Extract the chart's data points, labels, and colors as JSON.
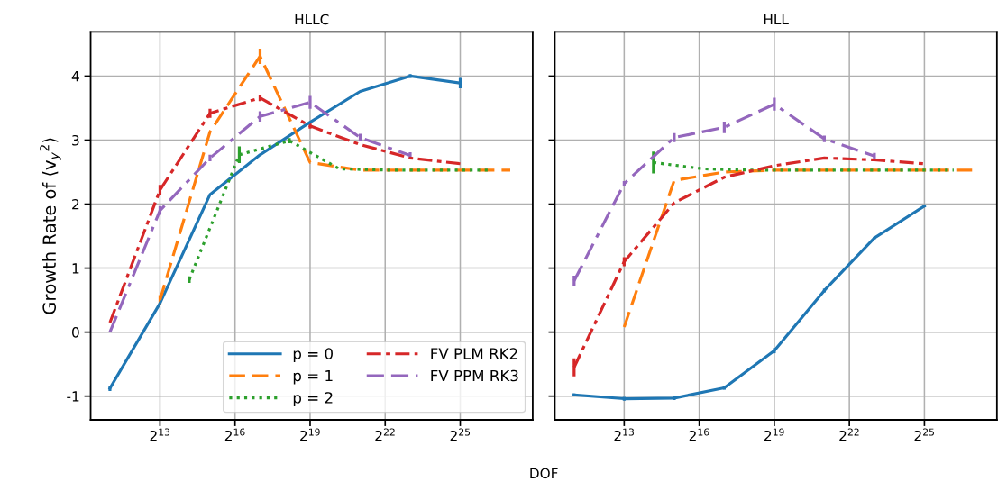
{
  "chart_data": [
    {
      "type": "line",
      "title": "HLLC",
      "xlabel": "DOF",
      "ylabel": "Growth Rate of ⟨v$_{y}$$^{2}$⟩",
      "log": "x",
      "grid": true,
      "legend": "bottom right",
      "xlim": [
        1200,
        250000000
      ],
      "ylim": [
        -1.37,
        4.69
      ],
      "xticks": [
        {
          "value": 8192,
          "label": "2$^{13}$"
        },
        {
          "value": 65536,
          "label": "2$^{16}$"
        },
        {
          "value": 524288,
          "label": "2$^{19}$"
        },
        {
          "value": 4194304,
          "label": "2$^{22}$"
        },
        {
          "value": 33554432,
          "label": "2$^{25}$"
        }
      ],
      "yticks": [
        -1,
        0,
        1,
        2,
        3,
        4
      ],
      "series": [
        {
          "name": "p = 0",
          "color": "#1f77b4",
          "line_style": "solid",
          "x": [
            2048,
            8192,
            32768,
            131072,
            524288,
            2097152,
            8388608,
            33554432
          ],
          "values": [
            -0.88,
            0.45,
            2.15,
            2.77,
            3.28,
            3.76,
            4.0,
            3.89
          ],
          "errors": [
            0.04,
            null,
            null,
            null,
            null,
            null,
            0.03,
            0.08
          ]
        },
        {
          "name": "p = 1",
          "color": "#ff7f0e",
          "line_style": "dashed",
          "x": [
            8192,
            32768,
            131072,
            524288,
            2097152,
            8388608,
            33554432,
            134217728
          ],
          "values": [
            0.5,
            3.13,
            4.31,
            2.65,
            2.53,
            2.53,
            2.53,
            2.53
          ],
          "errors": [
            0.08,
            null,
            0.12,
            null,
            null,
            null,
            null,
            null
          ]
        },
        {
          "name": "p = 2",
          "color": "#2ca02c",
          "line_style": "dotted",
          "x": [
            18432,
            73728,
            294912,
            1179648,
            4718592,
            18874368,
            75497472
          ],
          "values": [
            0.82,
            2.77,
            2.99,
            2.55,
            2.53,
            2.53,
            2.53
          ],
          "errors": [
            0.05,
            0.13,
            0.04,
            null,
            null,
            null,
            null
          ]
        },
        {
          "name": "FV PLM RK2",
          "color": "#d62728",
          "line_style": "dashdot",
          "x": [
            2048,
            8192,
            32768,
            131072,
            524288,
            2097152,
            8388608,
            33554432
          ],
          "values": [
            0.15,
            2.22,
            3.42,
            3.66,
            3.22,
            2.93,
            2.72,
            2.63
          ],
          "errors": [
            null,
            0.08,
            0.07,
            0.05,
            0.04,
            null,
            null,
            null
          ]
        },
        {
          "name": "FV PPM RK3",
          "color": "#9467bd",
          "line_style": "dashdashdot",
          "x": [
            2048,
            8192,
            32768,
            131072,
            524288,
            2097152,
            8388608
          ],
          "values": [
            0.0,
            1.9,
            2.72,
            3.37,
            3.59,
            3.04,
            2.76
          ],
          "errors": [
            null,
            0.07,
            0.05,
            0.08,
            0.1,
            0.06,
            0.05
          ]
        }
      ]
    },
    {
      "type": "line",
      "title": "HLL",
      "log": "x",
      "grid": true,
      "tick_labels": "x",
      "xlim": [
        1200,
        250000000
      ],
      "ylim": [
        -1.37,
        4.69
      ],
      "xticks": [
        {
          "value": 8192,
          "label": "2$^{13}$"
        },
        {
          "value": 65536,
          "label": "2$^{16}$"
        },
        {
          "value": 524288,
          "label": "2$^{19}$"
        },
        {
          "value": 4194304,
          "label": "2$^{22}$"
        },
        {
          "value": 33554432,
          "label": "2$^{25}$"
        }
      ],
      "yticks": [
        -1,
        0,
        1,
        2,
        3,
        4
      ],
      "series": [
        {
          "color": "#1f77b4",
          "line_style": "solid",
          "x": [
            2048,
            8192,
            32768,
            131072,
            524288,
            2097152,
            8388608,
            33554432
          ],
          "values": [
            -0.98,
            -1.04,
            -1.03,
            -0.87,
            -0.29,
            0.65,
            1.47,
            1.97
          ],
          "errors": [
            0.02,
            0.03,
            0.03,
            0.03,
            0.04,
            0.03,
            0.02,
            0.02
          ]
        },
        {
          "color": "#ff7f0e",
          "line_style": "dashed",
          "x": [
            8192,
            32768,
            131072,
            524288,
            2097152,
            8388608,
            33554432,
            134217728
          ],
          "values": [
            0.08,
            2.37,
            2.5,
            2.53,
            2.53,
            2.53,
            2.53,
            2.53
          ]
        },
        {
          "color": "#2ca02c",
          "line_style": "dotted",
          "x": [
            18432,
            73728,
            294912,
            1179648,
            4718592,
            18874368,
            75497472
          ],
          "values": [
            2.65,
            2.55,
            2.53,
            2.53,
            2.53,
            2.53,
            2.53
          ],
          "errors": [
            0.17,
            null,
            null,
            null,
            null,
            null,
            null
          ]
        },
        {
          "color": "#d62728",
          "line_style": "dashdot",
          "x": [
            2048,
            8192,
            32768,
            131072,
            524288,
            2097152,
            8388608,
            33554432
          ],
          "values": [
            -0.55,
            1.1,
            2.02,
            2.42,
            2.6,
            2.72,
            2.69,
            2.63
          ],
          "errors": [
            0.14,
            0.07,
            null,
            null,
            null,
            null,
            null,
            null
          ]
        },
        {
          "color": "#9467bd",
          "line_style": "dashdashdot",
          "x": [
            2048,
            8192,
            32768,
            131072,
            524288,
            2097152,
            8388608
          ],
          "values": [
            0.8,
            2.32,
            3.04,
            3.2,
            3.56,
            3.02,
            2.75
          ],
          "errors": [
            0.08,
            0.04,
            0.07,
            0.09,
            0.1,
            0.05,
            0.05
          ]
        }
      ]
    }
  ]
}
